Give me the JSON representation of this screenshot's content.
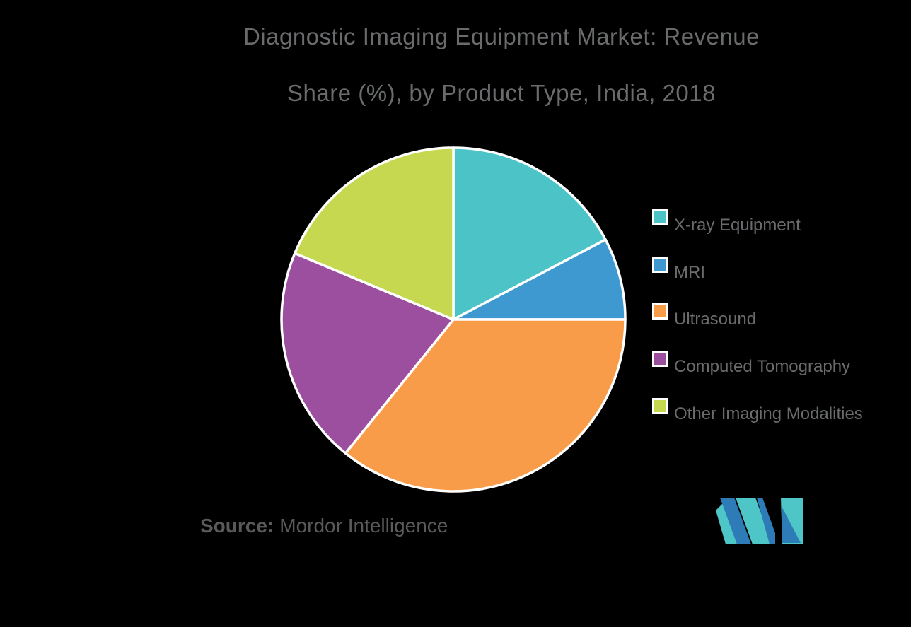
{
  "title": {
    "line1": "Diagnostic Imaging Equipment Market: Revenue",
    "line2": "Share (%), by Product Type, India, 2018"
  },
  "source": {
    "label": "Source:",
    "text": "Mordor Intelligence"
  },
  "logo": {
    "alt": "Mordor Intelligence logo",
    "blue": "#2E7CB7",
    "teal": "#4EC5C6"
  },
  "colors": {
    "background": "#000000",
    "title_text": "#6A6B6D",
    "legend_text": "#6A6B6D",
    "source_text": "#595A5C",
    "slice_border": "#FFFFFF"
  },
  "chart_data": {
    "type": "pie",
    "title": "Diagnostic Imaging Equipment Market: Revenue Share (%), by Product Type, India, 2018",
    "categories": [
      "X-ray Equipment",
      "MRI",
      "Ultrasound",
      "Computed Tomography",
      "Other Imaging Modalities"
    ],
    "values": [
      17.3,
      7.7,
      35.8,
      20.5,
      18.7
    ],
    "unit": "%",
    "colors": [
      "#4CC3C6",
      "#3E99D0",
      "#F89C49",
      "#9C4F9F",
      "#C5D850"
    ],
    "start_angle_deg": 0,
    "direction": "clockwise",
    "legend_position": "right",
    "data_labels": false
  }
}
